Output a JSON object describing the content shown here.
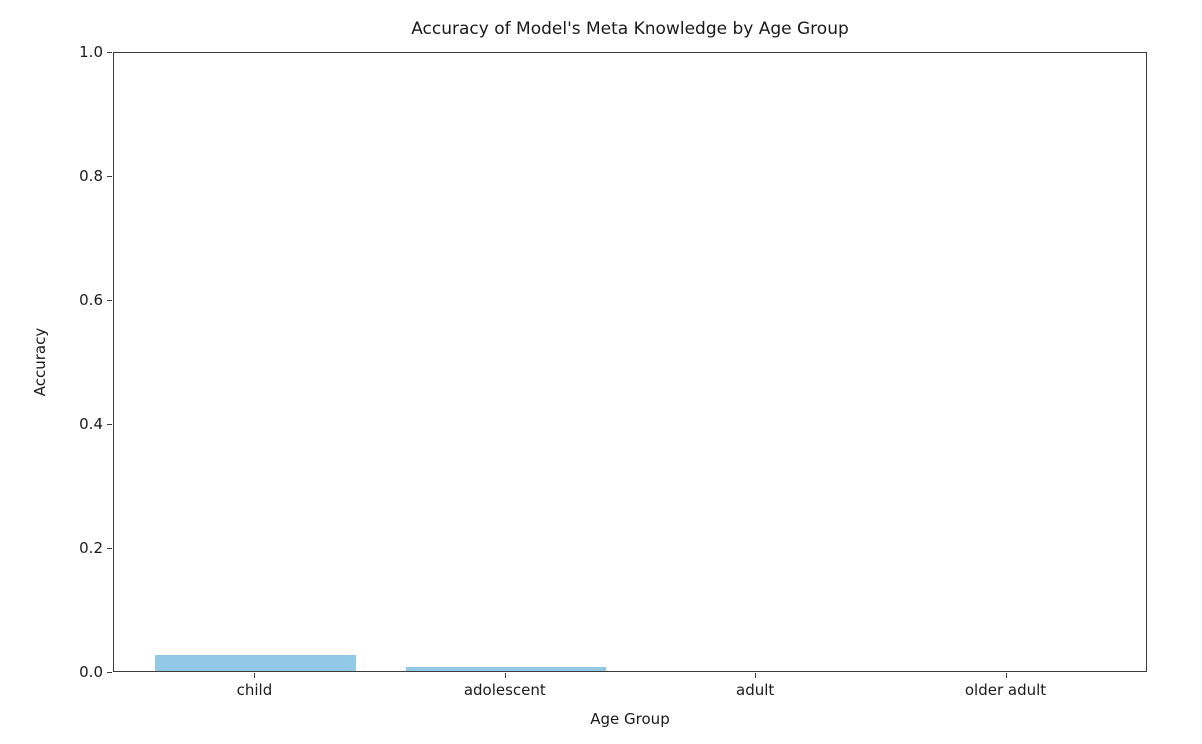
{
  "chart_data": {
    "type": "bar",
    "title": "Accuracy of Model's Meta Knowledge by Age Group",
    "xlabel": "Age Group",
    "ylabel": "Accuracy",
    "categories": [
      "child",
      "adolescent",
      "adult",
      "older adult"
    ],
    "values": [
      0.026,
      0.007,
      0.0,
      0.0
    ],
    "ylim": [
      0.0,
      1.0
    ],
    "yticks": [
      0.0,
      0.2,
      0.4,
      0.6,
      0.8,
      1.0
    ],
    "ytick_labels": [
      "0.0",
      "0.2",
      "0.4",
      "0.6",
      "0.8",
      "1.0"
    ],
    "bar_color": "#92c9e7",
    "bar_width_fraction": 0.8,
    "grid": false,
    "legend": null,
    "background_color": "#ffffff",
    "spine_color": "#3c3c3c",
    "text_color": "#1a1a1a"
  }
}
